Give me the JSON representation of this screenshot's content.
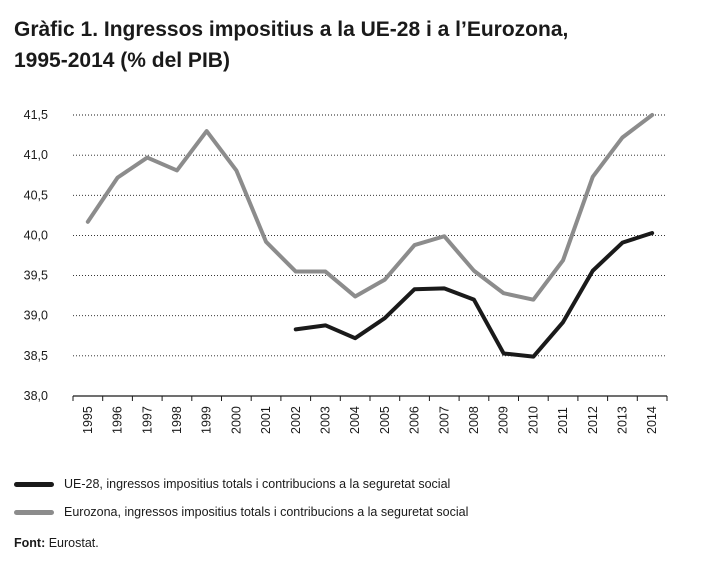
{
  "title_line1": "Gràfic 1. Ingressos impositius a la UE-28 i a l’Eurozona,",
  "title_line2": "1995-2014 (% del PIB)",
  "source_label": "Font:",
  "source_text": "Eurostat.",
  "chart_data": {
    "type": "line",
    "title": "Gràfic 1. Ingressos impositius a la UE-28 i a l’Eurozona, 1995-2014 (% del PIB)",
    "xlabel": "",
    "ylabel": "",
    "ylim": [
      38.0,
      41.5
    ],
    "yticks": [
      38.0,
      38.5,
      39.0,
      39.5,
      40.0,
      40.5,
      41.0,
      41.5
    ],
    "ytick_labels": [
      "38,0",
      "38,5",
      "39,0",
      "39,5",
      "40,0",
      "40,5",
      "41,0",
      "41,5"
    ],
    "grid": true,
    "legend_position": "bottom",
    "categories": [
      "1995",
      "1996",
      "1997",
      "1998",
      "1999",
      "2000",
      "2001",
      "2002",
      "2003",
      "2004",
      "2005",
      "2006",
      "2007",
      "2008",
      "2009",
      "2010",
      "2011",
      "2012",
      "2013",
      "2014"
    ],
    "series": [
      {
        "name": "UE-28, ingressos impositius totals i contribucions a la seguretat social",
        "color": "#1a1a1a",
        "values": [
          null,
          null,
          null,
          null,
          null,
          null,
          null,
          38.83,
          38.88,
          38.72,
          38.97,
          39.33,
          39.34,
          39.2,
          38.53,
          38.49,
          38.92,
          39.56,
          39.91,
          40.03
        ]
      },
      {
        "name": "Eurozona, ingressos impositius totals i contribucions a la seguretat social",
        "color": "#8c8c8c",
        "values": [
          40.17,
          40.72,
          40.97,
          40.81,
          41.3,
          40.81,
          39.92,
          39.55,
          39.55,
          39.24,
          39.45,
          39.88,
          39.99,
          39.56,
          39.28,
          39.2,
          39.69,
          40.73,
          41.22,
          41.5
        ]
      }
    ]
  }
}
